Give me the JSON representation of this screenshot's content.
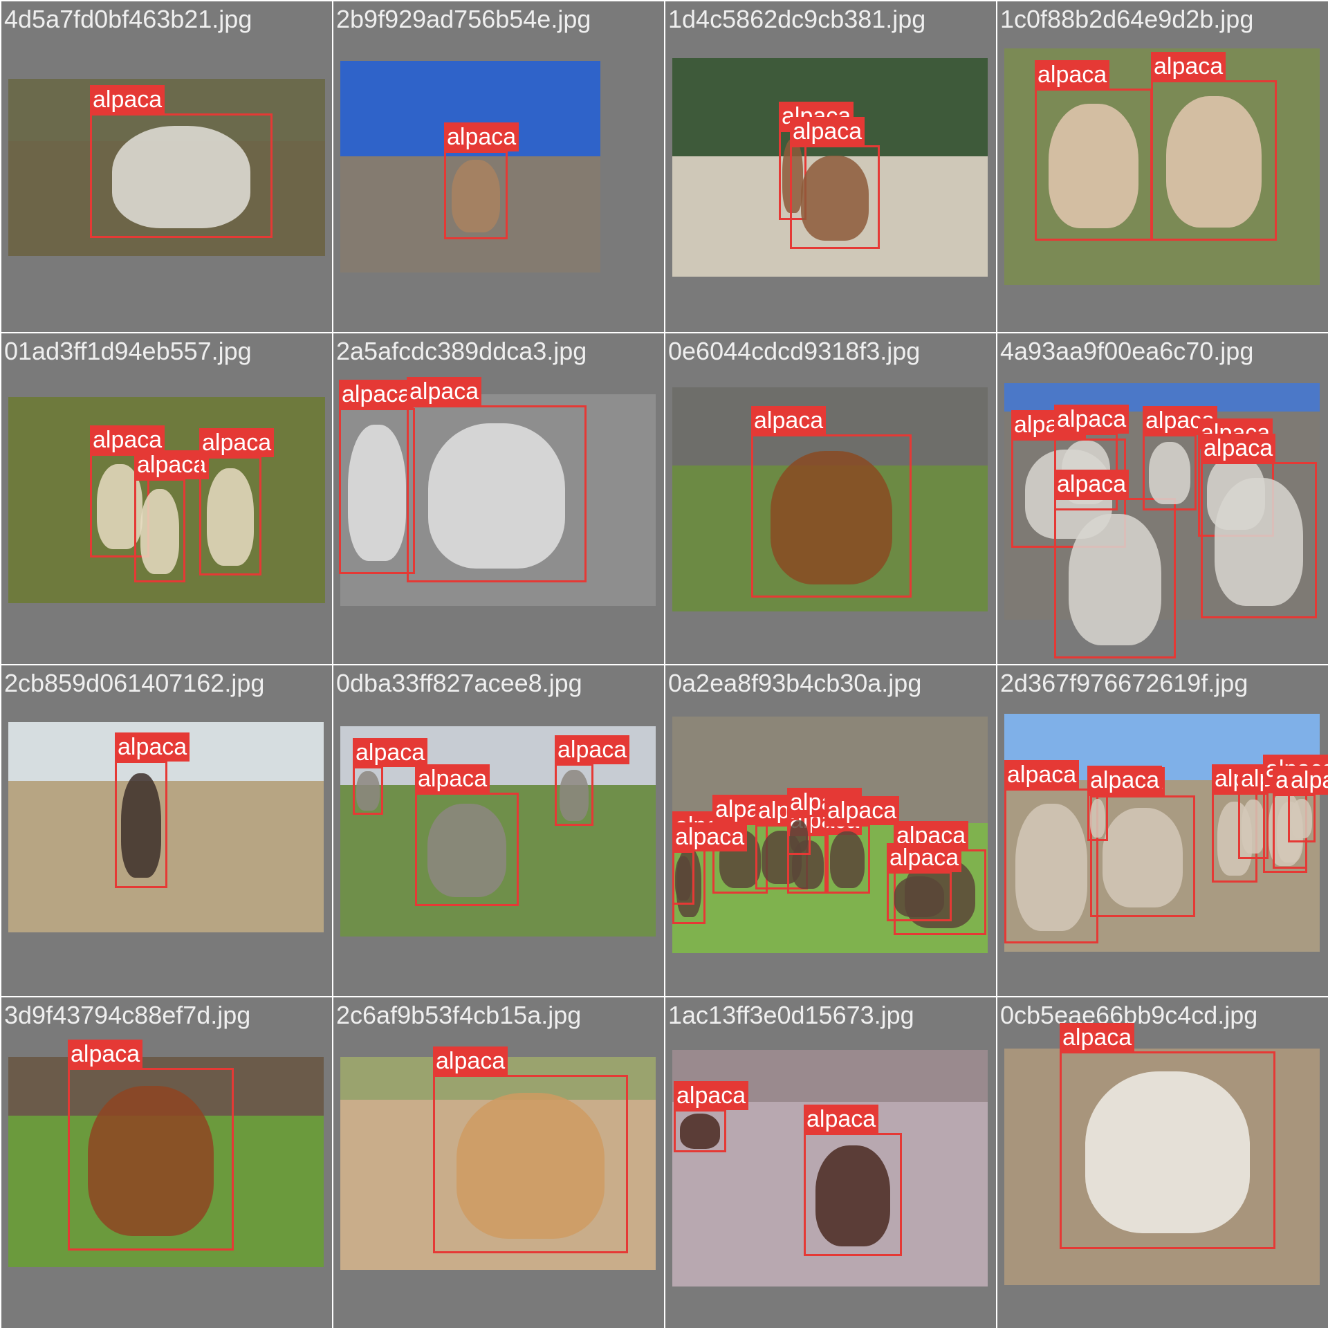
{
  "tiles": [
    {
      "filename": "4d5a7fd0bf463b21.jpg",
      "colors": {
        "sky": "#6b6a4c",
        "ground": "#6d6548",
        "animal": "#e3e1da"
      },
      "detections": [
        {
          "label": "alpaca"
        }
      ]
    },
    {
      "filename": "2b9f929ad756b54e.jpg",
      "colors": {
        "sky": "#2f63c9",
        "ground": "#847b70",
        "animal": "#a9835f"
      },
      "detections": [
        {
          "label": "alpaca"
        }
      ]
    },
    {
      "filename": "1d4c5862dc9cb381.jpg",
      "colors": {
        "sky": "#3e5a3a",
        "ground": "#cfc8b8",
        "animal": "#8d5a3a"
      },
      "detections": [
        {
          "label": "alpaca"
        },
        {
          "label": "alpaca"
        }
      ]
    },
    {
      "filename": "1c0f88b2d64e9d2b.jpg",
      "colors": {
        "sky": "#6f8650",
        "ground": "#7b8a55",
        "animal": "#e3c7b0"
      },
      "detections": [
        {
          "label": "alpaca"
        },
        {
          "label": "alpaca"
        }
      ]
    },
    {
      "filename": "01ad3ff1d94eb557.jpg",
      "colors": {
        "sky": "#7a8748",
        "ground": "#6e7a3d",
        "animal": "#e8dcc2"
      },
      "detections": [
        {
          "label": "alpaca"
        },
        {
          "label": "alpaca"
        },
        {
          "label": "alpaca"
        }
      ]
    },
    {
      "filename": "2a5afcdc389ddca3.jpg",
      "colors": {
        "sky": "#5a5a5a",
        "ground": "#8e8e8e",
        "animal": "#e2e2e2"
      },
      "detections": [
        {
          "label": "alpaca"
        },
        {
          "label": "alpaca"
        }
      ]
    },
    {
      "filename": "0e6044cdcd9318f3.jpg",
      "colors": {
        "sky": "#6e6e6a",
        "ground": "#6c8a44",
        "animal": "#8a4a22"
      },
      "detections": [
        {
          "label": "alpaca"
        }
      ]
    },
    {
      "filename": "4a93aa9f00ea6c70.jpg",
      "colors": {
        "sky": "#4b78c8",
        "ground": "#7e7a74",
        "animal": "#d8d6d0"
      },
      "detections": [
        {
          "label": "alpaca"
        },
        {
          "label": "alpaca"
        },
        {
          "label": "alpaca"
        },
        {
          "label": "alpaca"
        },
        {
          "label": "alpaca"
        },
        {
          "label": "alpaca"
        }
      ]
    },
    {
      "filename": "2cb859d061407162.jpg",
      "colors": {
        "sky": "#d6dde0",
        "ground": "#b7a583",
        "animal": "#3d2f2a"
      },
      "detections": [
        {
          "label": "alpaca"
        }
      ]
    },
    {
      "filename": "0dba33ff827acee8.jpg",
      "colors": {
        "sky": "#c7ccd3",
        "ground": "#6f8f4a",
        "animal": "#8d8780"
      },
      "detections": [
        {
          "label": "alpaca"
        },
        {
          "label": "alpaca"
        },
        {
          "label": "alpaca"
        }
      ]
    },
    {
      "filename": "0a2ea8f93b4cb30a.jpg",
      "colors": {
        "sky": "#8c8678",
        "ground": "#7fb24e",
        "animal": "#5a4538"
      },
      "detections": [
        {
          "label": "alpaca"
        },
        {
          "label": "alpaca"
        },
        {
          "label": "alpaca"
        },
        {
          "label": "alpaca"
        },
        {
          "label": "alpaca"
        },
        {
          "label": "alpaca"
        },
        {
          "label": "alpaca"
        },
        {
          "label": "alpaca"
        },
        {
          "label": "alpaca"
        }
      ]
    },
    {
      "filename": "2d367f976672619f.jpg",
      "colors": {
        "sky": "#7fb0e8",
        "ground": "#a99b82",
        "animal": "#d3c8b8"
      },
      "detections": [
        {
          "label": "alpaca"
        },
        {
          "label": "alpaca"
        },
        {
          "label": "alpaca"
        },
        {
          "label": "alpaca"
        },
        {
          "label": "alpaca"
        },
        {
          "label": "alpaca"
        },
        {
          "label": "alpaca"
        },
        {
          "label": "alpaca"
        }
      ]
    },
    {
      "filename": "3d9f43794c88ef7d.jpg",
      "colors": {
        "sky": "#6b5b4a",
        "ground": "#6b9a3d",
        "animal": "#8e4522"
      },
      "detections": [
        {
          "label": "alpaca"
        }
      ]
    },
    {
      "filename": "2c6af9b53f4cb15a.jpg",
      "colors": {
        "sky": "#9aa36e",
        "ground": "#c9ad8a",
        "animal": "#cf9b62"
      },
      "detections": [
        {
          "label": "alpaca"
        }
      ]
    },
    {
      "filename": "1ac13ff3e0d15673.jpg",
      "colors": {
        "sky": "#9a8a8e",
        "ground": "#b8a8b0",
        "animal": "#4a2a22"
      },
      "detections": [
        {
          "label": "alpaca"
        },
        {
          "label": "alpaca"
        }
      ]
    },
    {
      "filename": "0cb5eae66bb9c4cd.jpg",
      "colors": {
        "sky": "#9a8a78",
        "ground": "#a8957c",
        "animal": "#f0ede8"
      },
      "detections": [
        {
          "label": "alpaca"
        }
      ]
    }
  ]
}
